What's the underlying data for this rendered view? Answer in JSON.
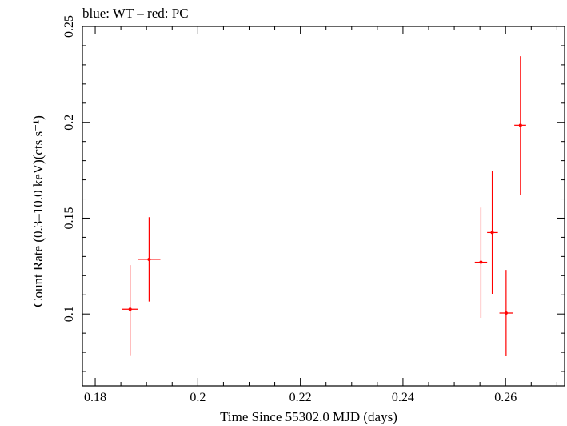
{
  "chart_data": {
    "type": "scatter",
    "title": "blue: WT – red: PC",
    "xlabel": "Time Since 55302.0 MJD (days)",
    "ylabel": "Count Rate (0.3–10.0 keV)(cts s⁻¹)",
    "xlim": [
      0.1775,
      0.2715
    ],
    "ylim": [
      0.0625,
      0.25
    ],
    "x_ticks": [
      {
        "value": 0.18,
        "label": "0.18"
      },
      {
        "value": 0.2,
        "label": "0.2"
      },
      {
        "value": 0.22,
        "label": "0.22"
      },
      {
        "value": 0.24,
        "label": "0.24"
      },
      {
        "value": 0.26,
        "label": "0.26"
      }
    ],
    "y_ticks": [
      {
        "value": 0.1,
        "label": "0.1"
      },
      {
        "value": 0.15,
        "label": "0.15"
      },
      {
        "value": 0.2,
        "label": "0.2"
      },
      {
        "value": 0.25,
        "label": "0.25"
      }
    ],
    "grid": false,
    "series": [
      {
        "color": "#ff0000",
        "points": [
          {
            "x": 0.1868,
            "xlo": 0.1852,
            "xhi": 0.1884,
            "y": 0.1025,
            "ylo": 0.0785,
            "yhi": 0.1255
          },
          {
            "x": 0.1905,
            "xlo": 0.1884,
            "xhi": 0.1927,
            "y": 0.1285,
            "ylo": 0.1065,
            "yhi": 0.1505
          },
          {
            "x": 0.2552,
            "xlo": 0.254,
            "xhi": 0.2564,
            "y": 0.127,
            "ylo": 0.098,
            "yhi": 0.1555
          },
          {
            "x": 0.2574,
            "xlo": 0.2564,
            "xhi": 0.2585,
            "y": 0.1425,
            "ylo": 0.1105,
            "yhi": 0.1745
          },
          {
            "x": 0.2601,
            "xlo": 0.2588,
            "xhi": 0.2614,
            "y": 0.1005,
            "ylo": 0.078,
            "yhi": 0.123
          },
          {
            "x": 0.2629,
            "xlo": 0.2617,
            "xhi": 0.264,
            "y": 0.1985,
            "ylo": 0.162,
            "yhi": 0.2345
          }
        ]
      }
    ]
  }
}
